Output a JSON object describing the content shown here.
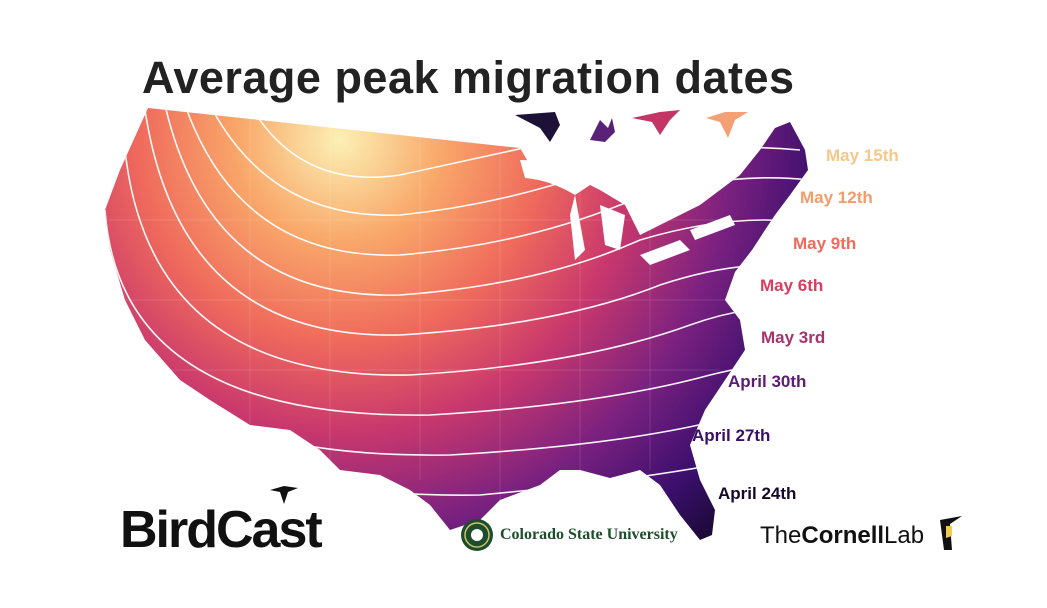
{
  "title": "Average peak migration dates",
  "isochrones": [
    {
      "label": "May 15th",
      "color": "#f6c78a"
    },
    {
      "label": "May 12th",
      "color": "#f59b6a"
    },
    {
      "label": "May 9th",
      "color": "#f06a5a"
    },
    {
      "label": "May 6th",
      "color": "#d93d5f"
    },
    {
      "label": "May 3rd",
      "color": "#a8326e"
    },
    {
      "label": "April 30th",
      "color": "#5e1d74"
    },
    {
      "label": "April 27th",
      "color": "#3a1065"
    },
    {
      "label": "April 24th",
      "color": "#15082d"
    }
  ],
  "gradient": {
    "low": "#16092e",
    "mid1": "#721f81",
    "mid2": "#d3436e",
    "mid3": "#f8765c",
    "high": "#fcfdbf"
  },
  "logos": {
    "birdcast": "BirdCast",
    "csu": "Colorado State University",
    "cornell_the": "The",
    "cornell_name": "Cornell",
    "cornell_lab": "Lab"
  }
}
